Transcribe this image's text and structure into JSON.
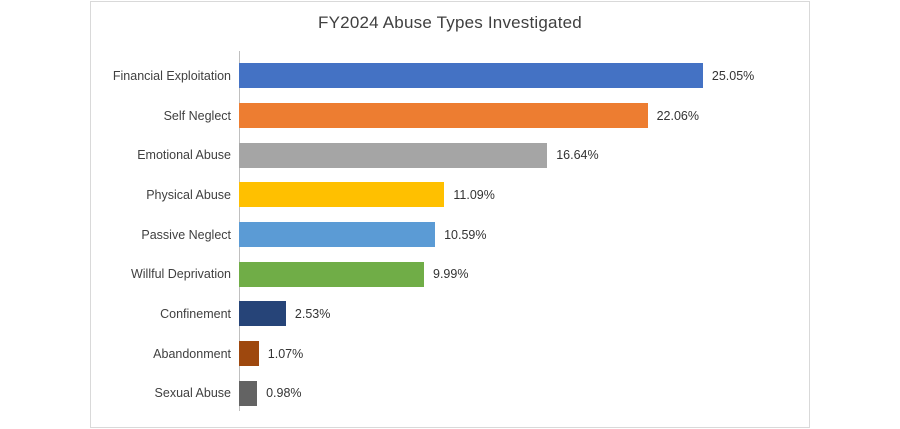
{
  "chart_data": {
    "type": "bar",
    "orientation": "horizontal",
    "title": "FY2024 Abuse Types Investigated",
    "categories": [
      "Financial Exploitation",
      "Self Neglect",
      "Emotional Abuse",
      "Physical Abuse",
      "Passive Neglect",
      "Willful Deprivation",
      "Confinement",
      "Abandonment",
      "Sexual Abuse"
    ],
    "values": [
      25.05,
      22.06,
      16.64,
      11.09,
      10.59,
      9.99,
      2.53,
      1.07,
      0.98
    ],
    "value_labels": [
      "25.05%",
      "22.06%",
      "16.64%",
      "11.09%",
      "10.59%",
      "9.99%",
      "2.53%",
      "1.07%",
      "0.98%"
    ],
    "colors": [
      "#4472C4",
      "#ED7D31",
      "#A5A5A5",
      "#FFC000",
      "#5B9BD5",
      "#70AD47",
      "#264478",
      "#9E480E",
      "#636363"
    ],
    "xlabel": "",
    "ylabel": "",
    "xlim": [
      0,
      26
    ],
    "grid": false,
    "legend": "none",
    "value_labels_position": "outside-end",
    "frame_border_color": "#d9d9d9",
    "axis_line_color": "#bfbfbf",
    "title_color": "#404040",
    "label_color": "#404040"
  }
}
